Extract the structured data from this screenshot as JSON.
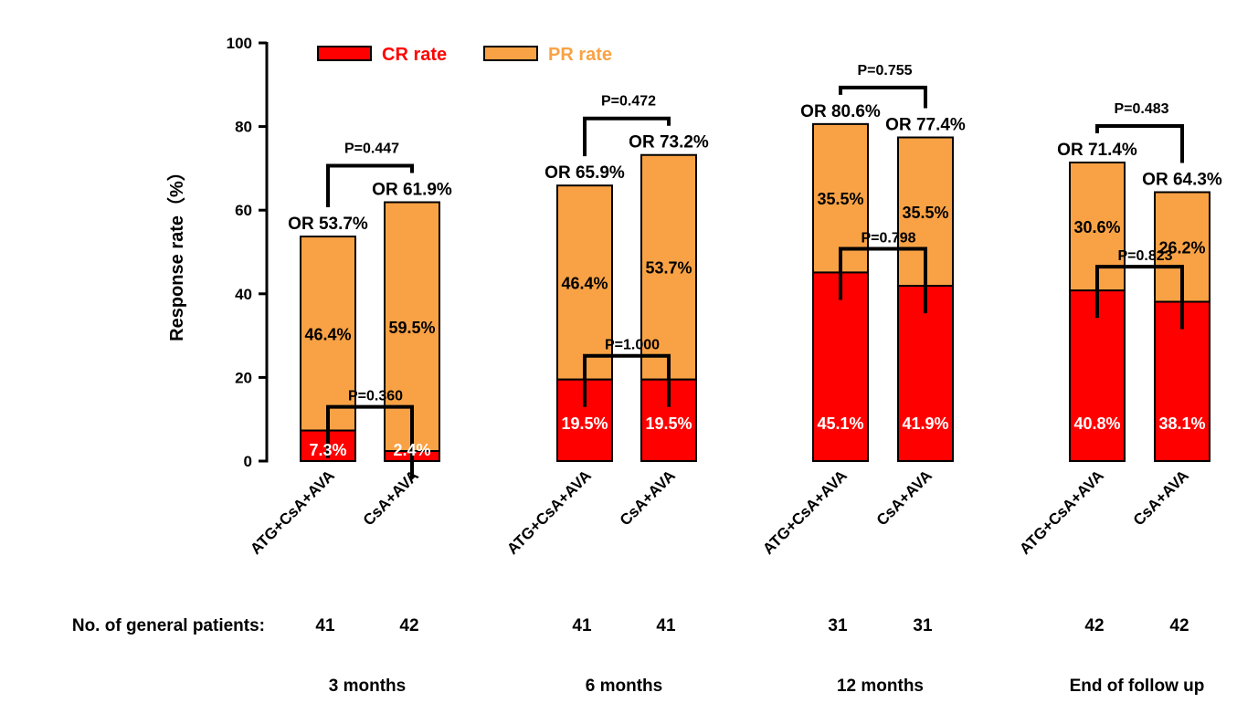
{
  "chart_data": {
    "type": "bar",
    "stacked": true,
    "ylabel": "Response rate（%）",
    "ylim": [
      0,
      100
    ],
    "yticks": [
      0,
      20,
      40,
      60,
      80,
      100
    ],
    "grid": false,
    "legend": {
      "position": "top-left",
      "entries": [
        {
          "label": "CR rate",
          "color": "#ff0000",
          "text_color": "#ff0000"
        },
        {
          "label": "PR rate",
          "color": "#f9a245",
          "text_color": "#f9a245"
        }
      ]
    },
    "colors": {
      "cr": "#ff0000",
      "pr": "#f9a245",
      "outline": "#000000"
    },
    "patients_row_label": "No. of general patients:",
    "groups": [
      {
        "label": "3 months",
        "bars": [
          {
            "category": "ATG+CsA+AVA",
            "cr": 7.3,
            "pr": 46.4,
            "or": 53.7,
            "cr_label": "7.3%",
            "pr_label": "46.4%",
            "or_label": "OR 53.7%",
            "patients": "41"
          },
          {
            "category": "CsA+AVA",
            "cr": 2.4,
            "pr": 59.5,
            "or": 61.9,
            "cr_label": "2.4%",
            "pr_label": "59.5%",
            "or_label": "OR 61.9%",
            "patients": "42"
          }
        ],
        "p_or": "P=0.447",
        "p_cr": "P=0.360"
      },
      {
        "label": "6 months",
        "bars": [
          {
            "category": "ATG+CsA+AVA",
            "cr": 19.5,
            "pr": 46.4,
            "or": 65.9,
            "cr_label": "19.5%",
            "pr_label": "46.4%",
            "or_label": "OR 65.9%",
            "patients": "41"
          },
          {
            "category": "CsA+AVA",
            "cr": 19.5,
            "pr": 53.7,
            "or": 73.2,
            "cr_label": "19.5%",
            "pr_label": "53.7%",
            "or_label": "OR 73.2%",
            "patients": "41"
          }
        ],
        "p_or": "P=0.472",
        "p_cr": "P=1.000"
      },
      {
        "label": "12 months",
        "bars": [
          {
            "category": "ATG+CsA+AVA",
            "cr": 45.1,
            "pr": 35.5,
            "or": 80.6,
            "cr_label": "45.1%",
            "pr_label": "35.5%",
            "or_label": "OR 80.6%",
            "patients": "31"
          },
          {
            "category": "CsA+AVA",
            "cr": 41.9,
            "pr": 35.5,
            "or": 77.4,
            "cr_label": "41.9%",
            "pr_label": "35.5%",
            "or_label": "OR 77.4%",
            "patients": "31"
          }
        ],
        "p_or": "P=0.755",
        "p_cr": "P=0.798"
      },
      {
        "label": "End of follow up",
        "bars": [
          {
            "category": "ATG+CsA+AVA",
            "cr": 40.8,
            "pr": 30.6,
            "or": 71.4,
            "cr_label": "40.8%",
            "pr_label": "30.6%",
            "or_label": "OR 71.4%",
            "patients": "42"
          },
          {
            "category": "CsA+AVA",
            "cr": 38.1,
            "pr": 26.2,
            "or": 64.3,
            "cr_label": "38.1%",
            "pr_label": "26.2%",
            "or_label": "OR 64.3%",
            "patients": "42"
          }
        ],
        "p_or": "P=0.483",
        "p_cr": "P=0.823"
      }
    ]
  }
}
